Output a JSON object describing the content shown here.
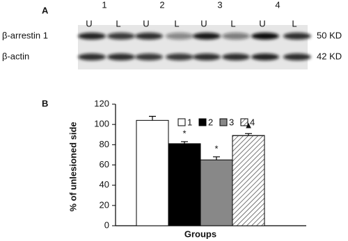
{
  "panel_a": {
    "label": "A",
    "lanes": [
      "1",
      "2",
      "3",
      "4"
    ],
    "conditions": [
      "U",
      "L",
      "U",
      "L",
      "U",
      "L",
      "U",
      "L"
    ],
    "rows": [
      {
        "label": "β-arrestin 1",
        "size": "50 KD"
      },
      {
        "label": "β-actin",
        "size": "42 KD"
      }
    ]
  },
  "chart_data": {
    "type": "bar",
    "panel_label": "B",
    "ylabel": "% of unlesioned side",
    "xlabel": "Groups",
    "categories": [
      null
    ],
    "ylim": [
      0,
      120
    ],
    "yticks": [
      0,
      20,
      40,
      60,
      80,
      100,
      120
    ],
    "series": [
      {
        "name": "1",
        "color": "#ffffff",
        "values": [
          104
        ],
        "errors": [
          4
        ]
      },
      {
        "name": "2",
        "color": "#000000",
        "values": [
          81
        ],
        "errors": [
          2
        ],
        "annotation": "*"
      },
      {
        "name": "3",
        "color": "#888888",
        "values": [
          65
        ],
        "errors": [
          3
        ],
        "annotation": "*"
      },
      {
        "name": "4",
        "color": "#ffffff",
        "pattern": "diagonal",
        "values": [
          89
        ],
        "errors": [
          2
        ],
        "annotation": "▲"
      }
    ]
  }
}
